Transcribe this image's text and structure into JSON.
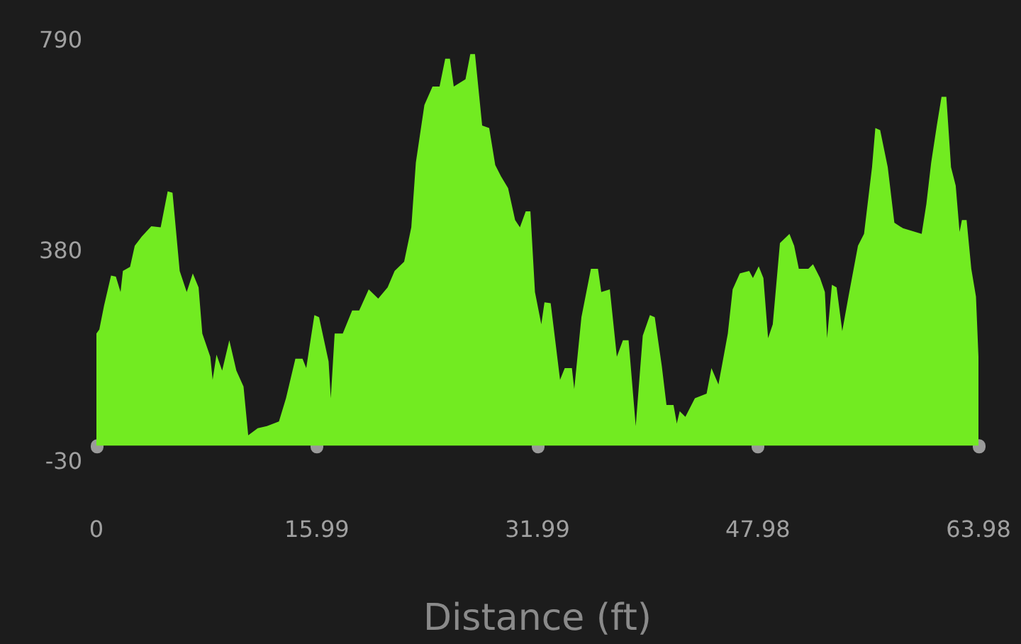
{
  "chart_data": {
    "type": "area",
    "xlabel": "Distance (ft)",
    "xlim": [
      0,
      63.98
    ],
    "xticks": [
      0,
      15.99,
      31.99,
      47.98,
      63.98
    ],
    "ylim": [
      -30,
      790
    ],
    "yticks": [
      -30,
      380,
      790
    ],
    "grid": false,
    "marker": "none",
    "x": [
      0,
      0.21,
      0.55,
      1.06,
      1.41,
      1.75,
      1.92,
      2.44,
      2.78,
      3.29,
      3.98,
      4.66,
      5.17,
      5.52,
      6.04,
      6.55,
      6.99,
      7.41,
      7.68,
      8.26,
      8.43,
      8.71,
      9.12,
      9.64,
      10.15,
      10.67,
      11.01,
      11.7,
      12.37,
      13.24,
      13.75,
      14.43,
      14.95,
      15.22,
      15.81,
      16.15,
      16.84,
      17,
      17.28,
      17.87,
      18.55,
      19.06,
      19.75,
      20.44,
      21.12,
      21.63,
      22.32,
      22.84,
      23.17,
      23.79,
      24.38,
      24.89,
      25.3,
      25.64,
      25.92,
      26.77,
      27.12,
      27.46,
      27.98,
      28.49,
      28.93,
      29.35,
      29.86,
      30.37,
      30.72,
      31.14,
      31.48,
      31.81,
      32.27,
      32.5,
      32.95,
      33.63,
      33.97,
      34.49,
      34.66,
      35.18,
      35.87,
      36.38,
      36.62,
      37.24,
      37.75,
      38.19,
      38.6,
      39.12,
      39.63,
      40.15,
      40.5,
      41.01,
      41.35,
      41.86,
      42.1,
      42.31,
      42.72,
      43.41,
      44.26,
      44.61,
      45.12,
      45.8,
      46.15,
      46.67,
      47.35,
      47.62,
      48.04,
      48.38,
      48.72,
      49.06,
      49.58,
      50.27,
      50.61,
      50.95,
      51.64,
      51.98,
      52.49,
      52.84,
      53,
      53.35,
      53.69,
      54.1,
      54.55,
      55.24,
      55.68,
      56.26,
      56.5,
      56.85,
      57.4,
      57.88,
      58.5,
      59.86,
      60.2,
      60.55,
      60.96,
      61.3,
      61.65,
      61.99,
      62.33,
      62.61,
      62.78,
      63.12,
      63.46,
      63.8,
      63.98
    ],
    "series": [
      {
        "color": "#72eb21",
        "values": [
          218,
          226,
          272,
          331,
          329,
          299,
          340,
          348,
          389,
          407,
          427,
          425,
          495,
          492,
          340,
          299,
          335,
          308,
          218,
          173,
          128,
          177,
          146,
          205,
          146,
          115,
          20,
          34,
          38,
          47,
          92,
          169,
          169,
          151,
          254,
          250,
          164,
          92,
          218,
          218,
          263,
          263,
          304,
          286,
          308,
          340,
          358,
          425,
          551,
          663,
          699,
          699,
          753,
          753,
          699,
          713,
          762,
          762,
          623,
          618,
          546,
          524,
          501,
          439,
          425,
          456,
          456,
          299,
          236,
          279,
          277,
          128,
          151,
          151,
          110,
          250,
          344,
          344,
          299,
          304,
          173,
          205,
          205,
          38,
          214,
          254,
          250,
          155,
          79,
          79,
          43,
          67,
          56,
          92,
          101,
          151,
          119,
          218,
          304,
          335,
          340,
          326,
          349,
          326,
          209,
          236,
          394,
          412,
          389,
          344,
          344,
          353,
          326,
          299,
          209,
          313,
          308,
          223,
          290,
          389,
          412,
          542,
          618,
          614,
          542,
          434,
          423,
          412,
          470,
          551,
          623,
          679,
          679,
          542,
          506,
          416,
          439,
          439,
          344,
          290,
          173
        ]
      }
    ]
  }
}
